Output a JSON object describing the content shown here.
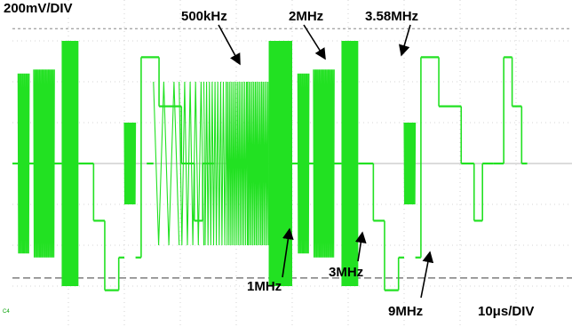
{
  "chart_data": {
    "type": "line",
    "colors": {
      "trace": "#22e122",
      "grid": "#c8c8c8",
      "cursor": "#888888",
      "label": "#000000"
    },
    "scale": {
      "vertical": "200mV/DIV",
      "horizontal": "10μs/DIV"
    },
    "channel_tag": "C4",
    "cursor_levels_div": [
      3.3,
      -2.8
    ],
    "ylim_div": [
      -4,
      4
    ],
    "xlim_us": [
      0,
      100
    ],
    "frames": 2,
    "frame_period_us": 50,
    "packets": [
      {
        "freq": "500kHz",
        "t_us": [
          25.2,
          29.8
        ],
        "amplitude_div": 2.0
      },
      {
        "freq": "1MHz",
        "t_us": [
          29.8,
          34.2
        ],
        "amplitude_div": 2.0
      },
      {
        "freq": "2MHz",
        "t_us": [
          34.2,
          38.2
        ],
        "amplitude_div": 2.0
      },
      {
        "freq": "3MHz",
        "t_us": [
          38.2,
          42.0
        ],
        "amplitude_div": 2.0
      },
      {
        "freq": "3.58MHz",
        "t_us": [
          42.0,
          45.8
        ],
        "amplitude_div": 2.0
      },
      {
        "freq": "9MHz",
        "t_us": [
          45.8,
          50.0
        ],
        "amplitude_div": 3.0
      }
    ],
    "annotations": [
      {
        "text": "500kHz",
        "points_to": "500kHz"
      },
      {
        "text": "2MHz",
        "points_to": "2MHz"
      },
      {
        "text": "3.58MHz",
        "points_to": "3.58MHz"
      },
      {
        "text": "1MHz",
        "points_to": "1MHz"
      },
      {
        "text": "3MHz",
        "points_to": "3MHz"
      },
      {
        "text": "9MHz",
        "points_to": "9MHz"
      }
    ]
  }
}
